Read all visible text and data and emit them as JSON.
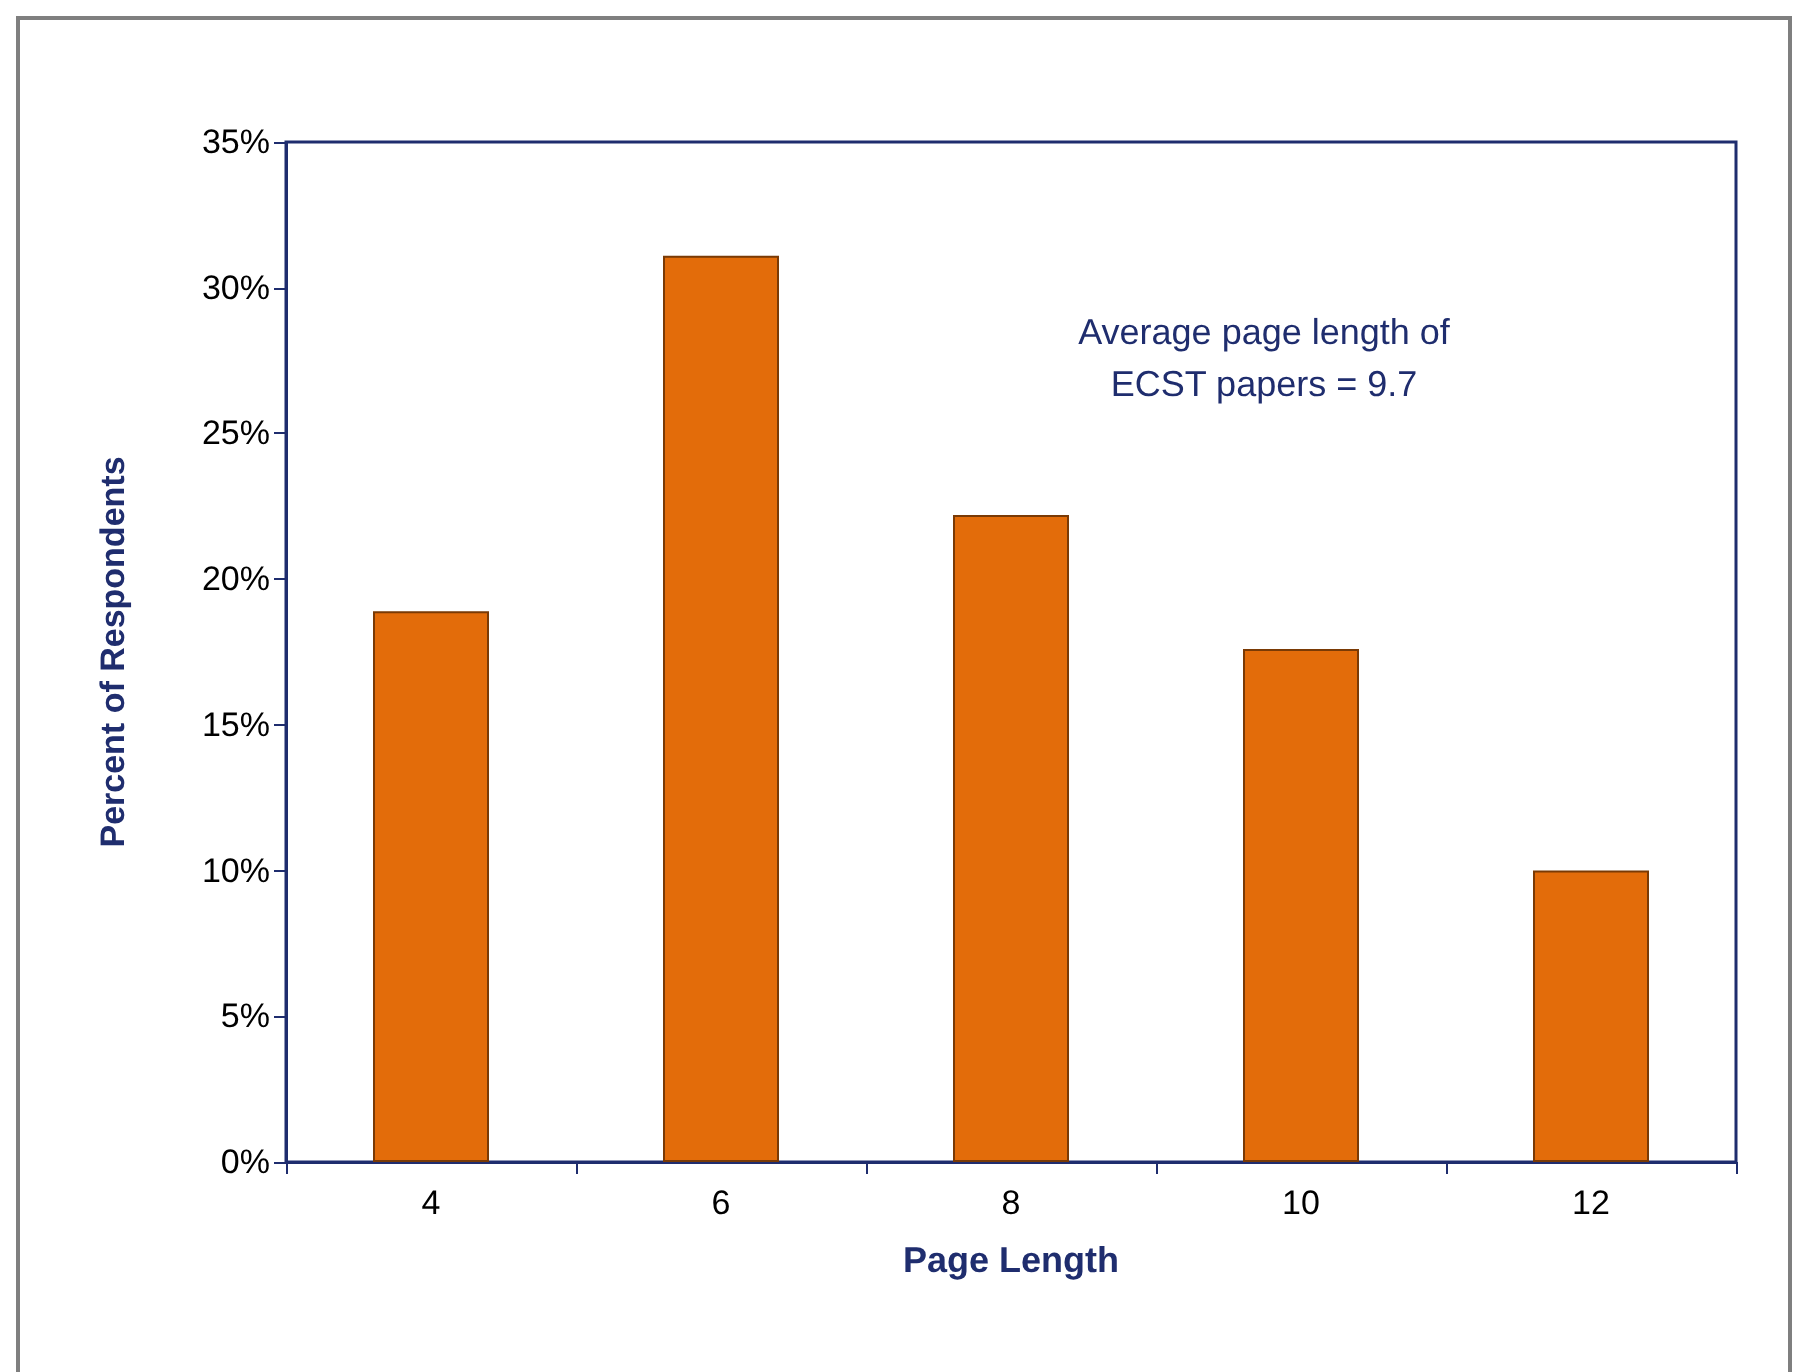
{
  "chart_data": {
    "type": "bar",
    "xlabel": "Page Length",
    "ylabel": "Percent of Respondents",
    "categories": [
      "4",
      "6",
      "8",
      "10",
      "12"
    ],
    "values": [
      18.9,
      31.1,
      22.2,
      17.6,
      10.0
    ],
    "color": "#e36c0a",
    "ylim": [
      0,
      35
    ],
    "yticks": [
      {
        "value": 0,
        "label": "0%"
      },
      {
        "value": 5,
        "label": "5%"
      },
      {
        "value": 10,
        "label": "10%"
      },
      {
        "value": 15,
        "label": "15%"
      },
      {
        "value": 20,
        "label": "20%"
      },
      {
        "value": 25,
        "label": "25%"
      },
      {
        "value": 30,
        "label": "30%"
      },
      {
        "value": 35,
        "label": "35%"
      }
    ],
    "annotations": [
      "Average page length of\nECST papers = 9.7"
    ],
    "grid": false
  }
}
